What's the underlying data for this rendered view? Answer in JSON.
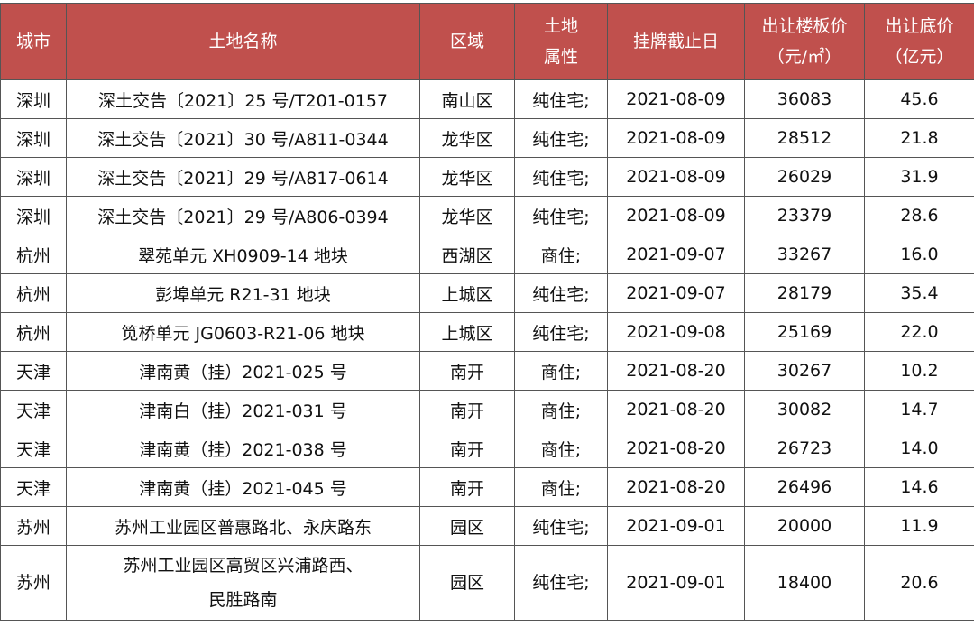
{
  "header_color": "#c0504d",
  "columns": [
    "城市",
    "土地名称",
    "区域",
    "土地\n属性",
    "挂牌截止日",
    "出让楼板价\n（元/㎡）",
    "出让底价\n（亿元）"
  ],
  "rows": [
    [
      "深圳",
      "深土交告〔2021〕25 号/T201-0157",
      "南山区",
      "纯住宅;",
      "2021-08-09",
      "36083",
      "45.6"
    ],
    [
      "深圳",
      "深土交告〔2021〕30 号/A811-0344",
      "龙华区",
      "纯住宅;",
      "2021-08-09",
      "28512",
      "21.8"
    ],
    [
      "深圳",
      "深土交告〔2021〕29 号/A817-0614",
      "龙华区",
      "纯住宅;",
      "2021-08-09",
      "26029",
      "31.9"
    ],
    [
      "深圳",
      "深土交告〔2021〕29 号/A806-0394",
      "龙华区",
      "纯住宅;",
      "2021-08-09",
      "23379",
      "28.6"
    ],
    [
      "杭州",
      "翠苑单元 XH0909-14 地块",
      "西湖区",
      "商住;",
      "2021-09-07",
      "33267",
      "16.0"
    ],
    [
      "杭州",
      "彭埠单元 R21-31 地块",
      "上城区",
      "纯住宅;",
      "2021-09-07",
      "28179",
      "35.4"
    ],
    [
      "杭州",
      "笕桥单元 JG0603-R21-06 地块",
      "上城区",
      "纯住宅;",
      "2021-09-08",
      "25169",
      "22.0"
    ],
    [
      "天津",
      "津南黄（挂）2021-025 号",
      "南开",
      "商住;",
      "2021-08-20",
      "30267",
      "10.2"
    ],
    [
      "天津",
      "津南白（挂）2021-031 号",
      "南开",
      "商住;",
      "2021-08-20",
      "30082",
      "14.7"
    ],
    [
      "天津",
      "津南黄（挂）2021-038 号",
      "南开",
      "商住;",
      "2021-08-20",
      "26723",
      "14.0"
    ],
    [
      "天津",
      "津南黄（挂）2021-045 号",
      "南开",
      "商住;",
      "2021-08-20",
      "26496",
      "14.6"
    ],
    [
      "苏州",
      "苏州工业园区普惠路北、永庆路东",
      "园区",
      "纯住宅;",
      "2021-09-01",
      "20000",
      "11.9"
    ],
    [
      "苏州",
      "苏州工业园区高贸区兴浦路西、\n民胜路南",
      "园区",
      "纯住宅;",
      "2021-09-01",
      "18400",
      "20.6"
    ]
  ]
}
